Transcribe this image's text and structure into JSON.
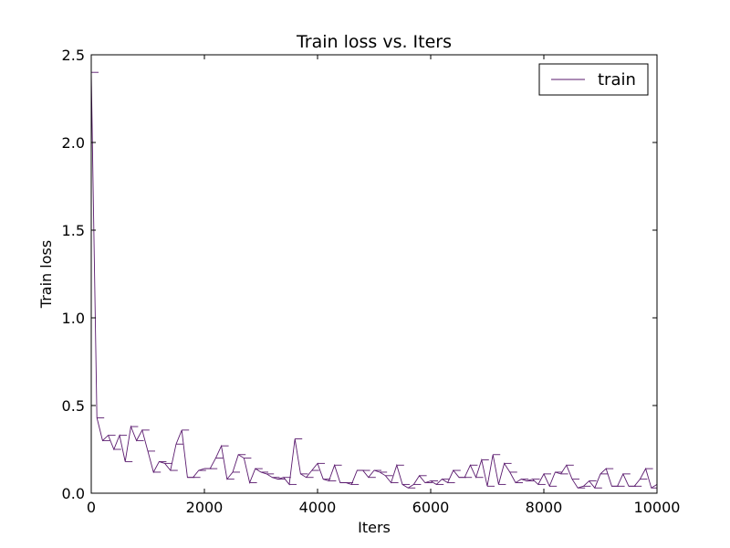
{
  "chart_data": {
    "type": "line",
    "title": "Train loss  vs. Iters",
    "xlabel": "Iters",
    "ylabel": "Train loss",
    "xlim": [
      0,
      10000
    ],
    "ylim": [
      0,
      2.5
    ],
    "xticks": [
      0,
      2000,
      4000,
      6000,
      8000,
      10000
    ],
    "xtick_labels": [
      "0",
      "2000",
      "4000",
      "6000",
      "8000",
      "10000"
    ],
    "yticks": [
      0,
      0.5,
      1.0,
      1.5,
      2.0,
      2.5
    ],
    "ytick_labels": [
      "0.0",
      "0.5",
      "1.0",
      "1.5",
      "2.0",
      "2.5"
    ],
    "grid": false,
    "legend": {
      "position": "top-right",
      "entries": [
        "train"
      ]
    },
    "series": [
      {
        "name": "train",
        "color": "#5a1a6e",
        "x": [
          0,
          100,
          200,
          300,
          400,
          500,
          600,
          700,
          800,
          900,
          1000,
          1100,
          1200,
          1300,
          1400,
          1500,
          1600,
          1700,
          1800,
          1900,
          2000,
          2100,
          2200,
          2300,
          2400,
          2500,
          2600,
          2700,
          2800,
          2900,
          3000,
          3100,
          3200,
          3300,
          3400,
          3500,
          3600,
          3700,
          3800,
          3900,
          4000,
          4100,
          4200,
          4300,
          4400,
          4500,
          4600,
          4700,
          4800,
          4900,
          5000,
          5100,
          5200,
          5300,
          5400,
          5500,
          5600,
          5700,
          5800,
          5900,
          6000,
          6100,
          6200,
          6300,
          6400,
          6500,
          6600,
          6700,
          6800,
          6900,
          7000,
          7100,
          7200,
          7300,
          7400,
          7500,
          7600,
          7700,
          7800,
          7900,
          8000,
          8100,
          8200,
          8300,
          8400,
          8500,
          8600,
          8700,
          8800,
          8900,
          9000,
          9100,
          9200,
          9300,
          9400,
          9500,
          9600,
          9700,
          9800,
          9900,
          10000
        ],
        "values": [
          2.4,
          0.43,
          0.3,
          0.33,
          0.25,
          0.33,
          0.18,
          0.38,
          0.3,
          0.36,
          0.24,
          0.12,
          0.18,
          0.17,
          0.13,
          0.28,
          0.36,
          0.09,
          0.09,
          0.13,
          0.14,
          0.14,
          0.2,
          0.27,
          0.08,
          0.12,
          0.22,
          0.2,
          0.06,
          0.14,
          0.12,
          0.11,
          0.09,
          0.08,
          0.09,
          0.05,
          0.31,
          0.11,
          0.09,
          0.13,
          0.17,
          0.08,
          0.07,
          0.16,
          0.06,
          0.06,
          0.05,
          0.13,
          0.13,
          0.09,
          0.13,
          0.12,
          0.1,
          0.06,
          0.16,
          0.05,
          0.03,
          0.05,
          0.1,
          0.06,
          0.07,
          0.05,
          0.08,
          0.06,
          0.13,
          0.09,
          0.09,
          0.16,
          0.09,
          0.19,
          0.04,
          0.22,
          0.05,
          0.17,
          0.12,
          0.06,
          0.08,
          0.07,
          0.08,
          0.05,
          0.11,
          0.04,
          0.12,
          0.11,
          0.16,
          0.08,
          0.03,
          0.04,
          0.07,
          0.03,
          0.11,
          0.14,
          0.04,
          0.04,
          0.11,
          0.04,
          0.04,
          0.08,
          0.14,
          0.03,
          0.05
        ]
      }
    ]
  }
}
